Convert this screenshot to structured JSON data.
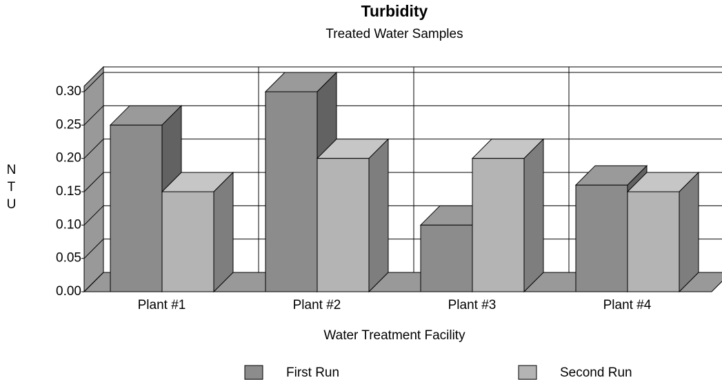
{
  "chart_data": {
    "type": "bar3d",
    "title": "Turbidity",
    "subtitle": "Treated Water Samples",
    "x_label": "Water Treatment Facility",
    "y_label": "NTU",
    "categories": [
      "Plant #1",
      "Plant #2",
      "Plant #3",
      "Plant #4"
    ],
    "series": [
      {
        "name": "First Run",
        "color": "#8c8c8c",
        "values": [
          0.25,
          0.3,
          0.1,
          0.16
        ]
      },
      {
        "name": "Second Run",
        "color": "#b4b4b4",
        "values": [
          0.15,
          0.2,
          0.2,
          0.15
        ]
      }
    ],
    "ylim": [
      0,
      0.3
    ],
    "yticks": [
      {
        "value": 0,
        "label": "0.00"
      },
      0.05,
      {
        "value": 0.1,
        "label": "0.10"
      },
      0.15,
      {
        "value": 0.2,
        "label": "0.20"
      },
      0.25,
      {
        "value": 0.3,
        "label": "0.30"
      }
    ],
    "grid": true,
    "legend": "bottom"
  }
}
